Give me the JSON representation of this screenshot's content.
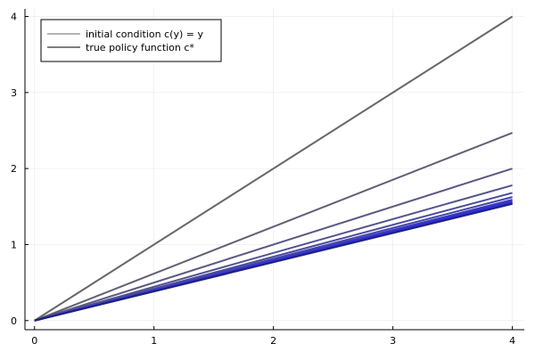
{
  "chart_data": {
    "type": "line",
    "title": "",
    "xlabel": "",
    "ylabel": "",
    "xlim": [
      -0.08,
      4.1
    ],
    "ylim": [
      -0.12,
      4.1
    ],
    "xticks": [
      0,
      1,
      2,
      3,
      4
    ],
    "yticks": [
      0,
      1,
      2,
      3,
      4
    ],
    "xtick_labels": [
      "0",
      "1",
      "2",
      "3",
      "4"
    ],
    "ytick_labels": [
      "0",
      "1",
      "2",
      "3",
      "4"
    ],
    "grid": true,
    "legend_position": "top-left",
    "legend": [
      {
        "label": "initial condition c(y) = y",
        "color": "#999999"
      },
      {
        "label": "true policy function c*",
        "color": "#555555"
      }
    ],
    "iterate_colors": [
      "#666666",
      "#5f5f74",
      "#595982",
      "#525290",
      "#4b4b9e",
      "#4444ac",
      "#3c3cba",
      "#3535c8",
      "#2d2dd5",
      "#2626e3",
      "#1f1f7f"
    ],
    "series": [
      {
        "x": [
          0,
          4
        ],
        "y": [
          0,
          4.0
        ]
      },
      {
        "x": [
          0,
          4
        ],
        "y": [
          0,
          2.47
        ]
      },
      {
        "x": [
          0,
          4
        ],
        "y": [
          0,
          2.0
        ]
      },
      {
        "x": [
          0,
          4
        ],
        "y": [
          0,
          1.78
        ]
      },
      {
        "x": [
          0,
          4
        ],
        "y": [
          0,
          1.68
        ]
      },
      {
        "x": [
          0,
          4
        ],
        "y": [
          0,
          1.625
        ]
      },
      {
        "x": [
          0,
          4
        ],
        "y": [
          0,
          1.59
        ]
      },
      {
        "x": [
          0,
          4
        ],
        "y": [
          0,
          1.57
        ]
      },
      {
        "x": [
          0,
          4
        ],
        "y": [
          0,
          1.555
        ]
      },
      {
        "x": [
          0,
          4
        ],
        "y": [
          0,
          1.545
        ]
      },
      {
        "x": [
          0,
          4
        ],
        "y": [
          0,
          1.535
        ]
      }
    ]
  }
}
